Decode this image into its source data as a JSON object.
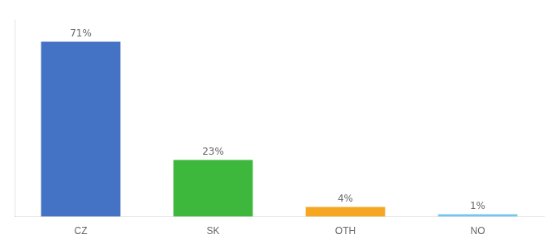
{
  "chart_data": {
    "type": "bar",
    "categories": [
      "CZ",
      "SK",
      "OTH",
      "NO"
    ],
    "values": [
      71,
      23,
      4,
      1
    ],
    "value_labels": [
      "71%",
      "23%",
      "4%",
      "1%"
    ],
    "colors": [
      "#4472c4",
      "#3db83d",
      "#f5a623",
      "#74c6f0"
    ],
    "ylim": [
      0,
      80
    ],
    "grid": false,
    "data_labels": true,
    "tick_labels": "x"
  }
}
